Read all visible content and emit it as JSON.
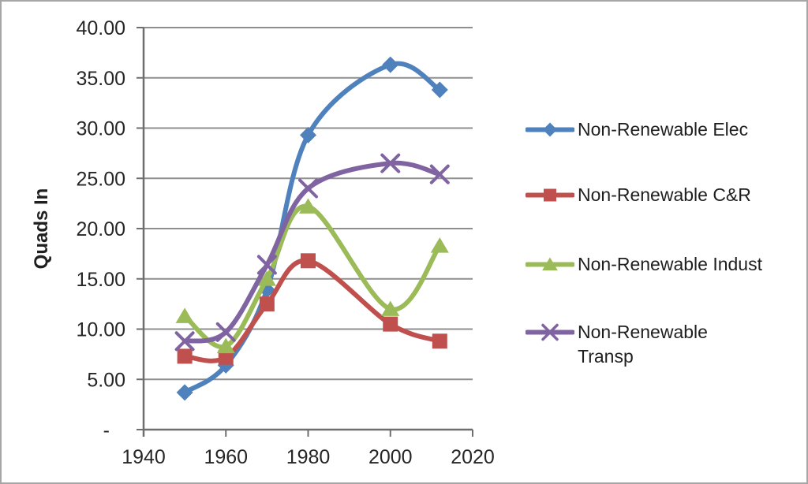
{
  "chart_data": {
    "type": "line",
    "title": "",
    "ylabel": "Quads In",
    "xlabel": "",
    "smooth_lines": true,
    "grid": true,
    "legend_position": "right",
    "x": [
      1950,
      1960,
      1970,
      1980,
      2000,
      2012
    ],
    "series": [
      {
        "name": "Non-Renewable Elec",
        "color": "#4F81BD",
        "marker": "diamond",
        "values": [
          3.7,
          6.4,
          13.9,
          29.3,
          36.3,
          33.8
        ]
      },
      {
        "name": "Non-Renewable C&R",
        "color": "#C0504D",
        "marker": "square",
        "values": [
          7.3,
          7.2,
          12.5,
          16.8,
          10.5,
          8.8
        ]
      },
      {
        "name": "Non-Renewable Indust",
        "color": "#9BBB59",
        "marker": "triangle",
        "values": [
          11.3,
          8.3,
          15.0,
          22.2,
          12.0,
          18.3
        ]
      },
      {
        "name": "Non-Renewable Transp",
        "color": "#8064A2",
        "marker": "x",
        "values": [
          8.8,
          9.7,
          16.4,
          24.0,
          26.5,
          25.4
        ]
      }
    ],
    "x_axis": {
      "min": 1940,
      "max": 2020,
      "tick_step": 20,
      "tick_labels": [
        "1940",
        "1960",
        "1980",
        "2000",
        "2020"
      ]
    },
    "y_axis": {
      "min": 0,
      "max": 40,
      "tick_step": 5,
      "tick_labels": [
        "-",
        "5.00",
        "10.00",
        "15.00",
        "20.00",
        "25.00",
        "30.00",
        "35.00",
        "40.00"
      ]
    },
    "colors": {
      "gridline": "#8f8f8f",
      "axis": "#6e6e6e",
      "tick_text": "#262626",
      "legend_text": "#1f1f1f",
      "frame_border": "#a6a6a6",
      "background": "#ffffff"
    }
  }
}
